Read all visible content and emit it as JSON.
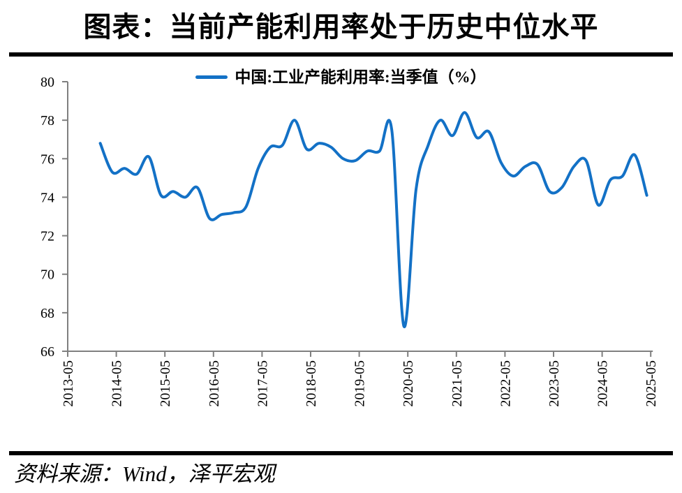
{
  "title": "图表：当前产能利用率处于历史中位水平",
  "source": "资料来源：Wind，泽平宏观",
  "colors": {
    "line": "#1371C6",
    "axis": "#7F7F7F",
    "divider": "#000000",
    "text": "#000000"
  },
  "chart_data": {
    "type": "line",
    "title": "图表：当前产能利用率处于历史中位水平",
    "legend_label": "中国:工业产能利用率:当季值（%）",
    "legend_position": "top-center",
    "grid": false,
    "ylabel": "",
    "xlabel": "",
    "ylim": [
      66,
      80
    ],
    "yticks": [
      66,
      68,
      70,
      72,
      74,
      76,
      78,
      80
    ],
    "xticks": [
      "2013-05",
      "2014-05",
      "2015-05",
      "2016-05",
      "2017-05",
      "2018-05",
      "2019-05",
      "2020-05",
      "2021-05",
      "2022-05",
      "2023-05",
      "2024-05",
      "2025-05"
    ],
    "x": [
      "2013-12",
      "2014-03",
      "2014-06",
      "2014-09",
      "2014-12",
      "2015-03",
      "2015-06",
      "2015-09",
      "2015-12",
      "2016-03",
      "2016-06",
      "2016-09",
      "2016-12",
      "2017-03",
      "2017-06",
      "2017-09",
      "2017-12",
      "2018-03",
      "2018-06",
      "2018-09",
      "2018-12",
      "2019-03",
      "2019-06",
      "2019-09",
      "2019-12",
      "2020-03",
      "2020-06",
      "2020-09",
      "2020-12",
      "2021-03",
      "2021-06",
      "2021-09",
      "2021-12",
      "2022-03",
      "2022-06",
      "2022-09",
      "2022-12",
      "2023-03",
      "2023-06",
      "2023-09",
      "2023-12",
      "2024-03",
      "2024-06",
      "2024-09",
      "2024-12",
      "2025-03"
    ],
    "series": [
      {
        "name": "中国:工业产能利用率:当季值（%）",
        "values": [
          76.8,
          75.3,
          75.5,
          75.2,
          76.1,
          74.1,
          74.3,
          74.0,
          74.5,
          72.9,
          73.1,
          73.2,
          73.5,
          75.5,
          76.6,
          76.7,
          78.0,
          76.5,
          76.8,
          76.6,
          76.0,
          75.9,
          76.4,
          76.4,
          77.5,
          67.3,
          74.4,
          76.7,
          78.0,
          77.2,
          78.4,
          77.1,
          77.4,
          75.8,
          75.1,
          75.6,
          75.7,
          74.3,
          74.5,
          75.6,
          75.9,
          73.6,
          74.9,
          75.1,
          76.2,
          74.1
        ]
      }
    ]
  }
}
